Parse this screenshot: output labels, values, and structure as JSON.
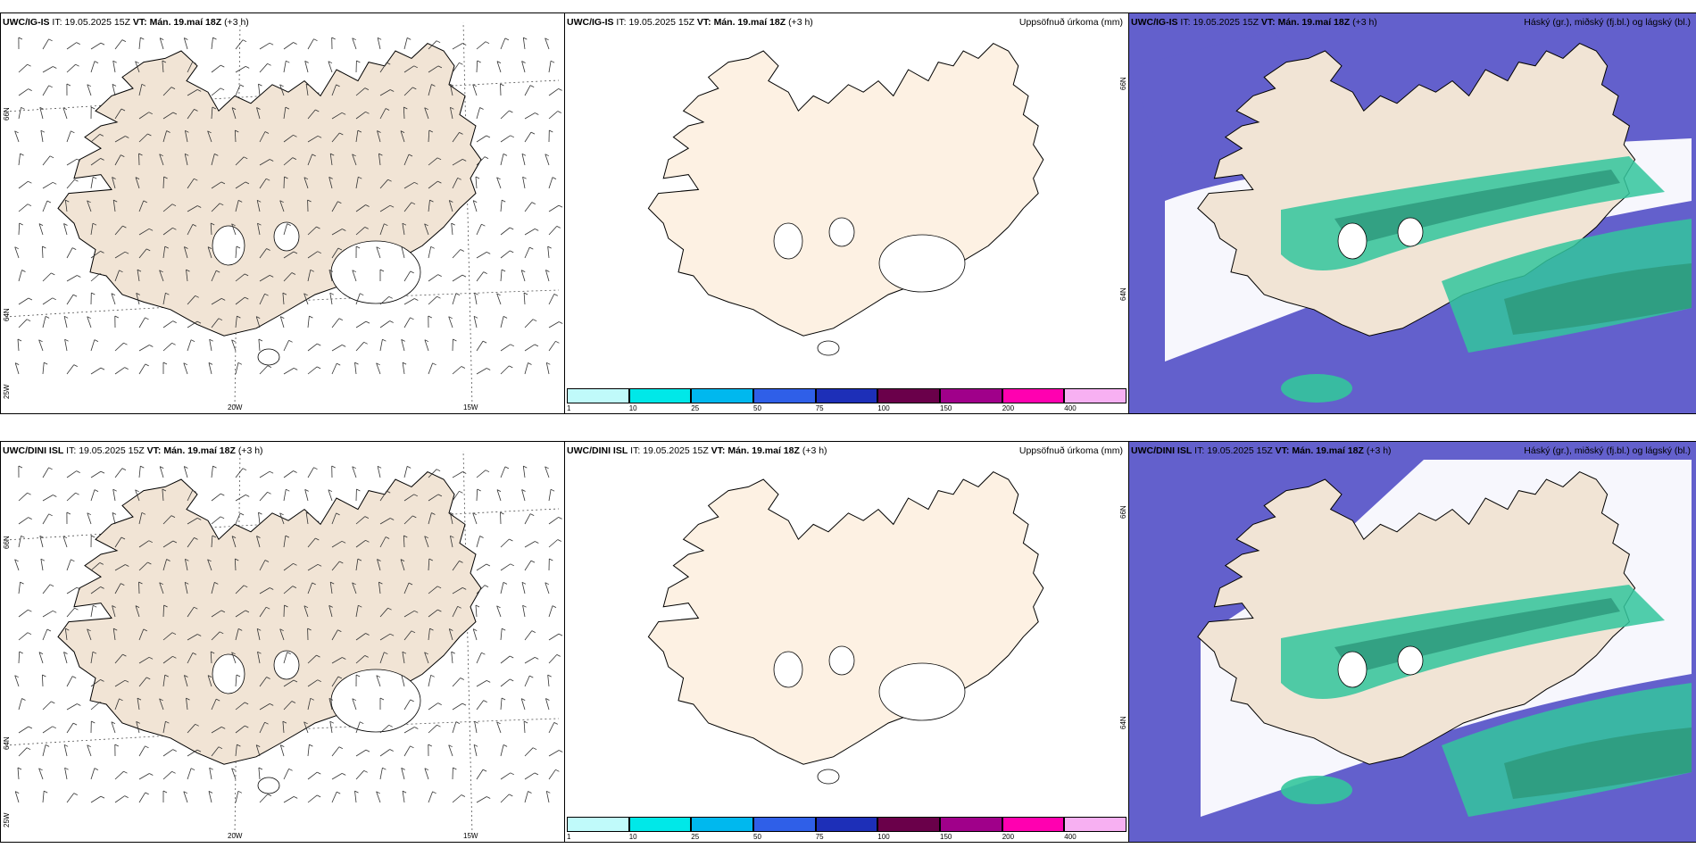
{
  "rows": [
    {
      "model": "UWC/IG-IS",
      "panels": [
        {
          "it_label": "IT:",
          "it_value": "19.05.2025 15Z",
          "vt_label": "VT:",
          "vt_value": "Mán. 19.maí 18Z",
          "offset": "(+3 h)",
          "right_title": ""
        },
        {
          "it_label": "IT:",
          "it_value": "19.05.2025 15Z",
          "vt_label": "VT:",
          "vt_value": "Mán. 19.maí 18Z",
          "offset": "(+3 h)",
          "right_title": "Uppsöfnuð úrkoma (mm)"
        },
        {
          "it_label": "IT:",
          "it_value": "19.05.2025 15Z",
          "vt_label": "VT:",
          "vt_value": "Mán. 19.maí 18Z",
          "offset": "(+3 h)",
          "right_title": "Háský (gr.), miðský (fj.bl.) og lágský (bl.)"
        }
      ]
    },
    {
      "model": "UWC/DINI ISL",
      "panels": [
        {
          "it_label": "IT:",
          "it_value": "19.05.2025 15Z",
          "vt_label": "VT:",
          "vt_value": "Mán. 19.maí 18Z",
          "offset": "(+3 h)",
          "right_title": ""
        },
        {
          "it_label": "IT:",
          "it_value": "19.05.2025 15Z",
          "vt_label": "VT:",
          "vt_value": "Mán. 19.maí 18Z",
          "offset": "(+3 h)",
          "right_title": "Uppsöfnuð úrkoma (mm)"
        },
        {
          "it_label": "IT:",
          "it_value": "19.05.2025 15Z",
          "vt_label": "VT:",
          "vt_value": "Mán. 19.maí 18Z",
          "offset": "(+3 h)",
          "right_title": "Háský (gr.), miðský (fj.bl.) og lágský (bl.)"
        }
      ]
    }
  ],
  "grid_labels": {
    "lat_66": "66N",
    "lat_64": "64N",
    "lon_25": "25W",
    "lon_20": "20W",
    "lon_15": "15W"
  },
  "precip_colorbar": {
    "ticks": [
      "1",
      "10",
      "25",
      "50",
      "75",
      "100",
      "150",
      "200",
      "400"
    ],
    "colors": [
      "#c0fafa",
      "#00e8e8",
      "#00b8ee",
      "#2f5fe8",
      "#1d2fb8",
      "#6a004a",
      "#a0008a",
      "#ff00b0",
      "#f7b0f2"
    ]
  },
  "colors": {
    "land_wind": "#f1e4d5",
    "land_precip": "#fdf1e3",
    "sea_low_cloud": "#6360cc",
    "mid_cloud": "#33c59c",
    "mid_cloud_dark": "#2e9a7c",
    "high_cloud": "#ffffff"
  }
}
